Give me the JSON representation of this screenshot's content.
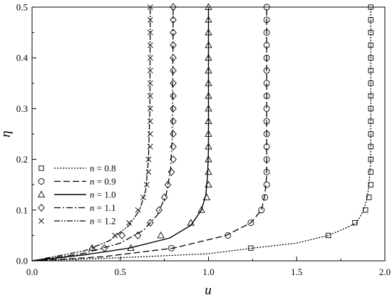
{
  "chart_data": {
    "type": "line",
    "xlabel": "u",
    "ylabel": "η",
    "xlim": [
      0.0,
      2.0
    ],
    "ylim": [
      0.0,
      0.5
    ],
    "x_ticks": [
      "0.0",
      "0.5",
      "1.0",
      "1.5",
      "2.0"
    ],
    "y_ticks": [
      "0.0",
      "0.1",
      "0.2",
      "0.3",
      "0.4",
      "0.5"
    ],
    "grid": false,
    "legend_position": "left-middle",
    "series": [
      {
        "name": "n = 0.8",
        "marker": "square",
        "line_style": "dotted",
        "line": [
          [
            0.0,
            0.0
          ],
          [
            0.5,
            0.006
          ],
          [
            1.0,
            0.014
          ],
          [
            1.25,
            0.025
          ],
          [
            1.5,
            0.035
          ],
          [
            1.68,
            0.05
          ],
          [
            1.78,
            0.065
          ],
          [
            1.84,
            0.075
          ],
          [
            1.88,
            0.1
          ],
          [
            1.9,
            0.125
          ],
          [
            1.91,
            0.15
          ],
          [
            1.92,
            0.2
          ],
          [
            1.92,
            0.5
          ]
        ],
        "markers": [
          [
            1.24,
            0.025
          ],
          [
            1.68,
            0.05
          ],
          [
            1.83,
            0.075
          ],
          [
            1.89,
            0.1
          ],
          [
            1.91,
            0.125
          ],
          [
            1.92,
            0.15
          ],
          [
            1.92,
            0.175
          ],
          [
            1.92,
            0.2
          ],
          [
            1.92,
            0.225
          ],
          [
            1.92,
            0.25
          ],
          [
            1.92,
            0.275
          ],
          [
            1.92,
            0.3
          ],
          [
            1.92,
            0.325
          ],
          [
            1.92,
            0.35
          ],
          [
            1.92,
            0.375
          ],
          [
            1.92,
            0.4
          ],
          [
            1.92,
            0.425
          ],
          [
            1.92,
            0.45
          ],
          [
            1.92,
            0.475
          ],
          [
            1.92,
            0.5
          ]
        ]
      },
      {
        "name": "n = 0.9",
        "marker": "circle",
        "line_style": "dashed",
        "line": [
          [
            0.0,
            0.0
          ],
          [
            0.4,
            0.008
          ],
          [
            0.8,
            0.025
          ],
          [
            1.1,
            0.05
          ],
          [
            1.24,
            0.075
          ],
          [
            1.3,
            0.1
          ],
          [
            1.32,
            0.13
          ],
          [
            1.33,
            0.17
          ],
          [
            1.33,
            0.5
          ]
        ],
        "markers": [
          [
            0.79,
            0.025
          ],
          [
            1.11,
            0.05
          ],
          [
            1.24,
            0.075
          ],
          [
            1.3,
            0.1
          ],
          [
            1.32,
            0.125
          ],
          [
            1.33,
            0.15
          ],
          [
            1.33,
            0.175
          ],
          [
            1.33,
            0.2
          ],
          [
            1.33,
            0.225
          ],
          [
            1.33,
            0.25
          ],
          [
            1.33,
            0.275
          ],
          [
            1.33,
            0.3
          ],
          [
            1.33,
            0.325
          ],
          [
            1.33,
            0.35
          ],
          [
            1.33,
            0.375
          ],
          [
            1.33,
            0.4
          ],
          [
            1.33,
            0.425
          ],
          [
            1.33,
            0.45
          ],
          [
            1.33,
            0.475
          ],
          [
            1.33,
            0.5
          ]
        ]
      },
      {
        "name": "n = 1.0",
        "marker": "triangle",
        "line_style": "solid",
        "line": [
          [
            0.0,
            0.0
          ],
          [
            0.3,
            0.012
          ],
          [
            0.55,
            0.025
          ],
          [
            0.78,
            0.045
          ],
          [
            0.9,
            0.07
          ],
          [
            0.96,
            0.1
          ],
          [
            0.985,
            0.13
          ],
          [
            0.995,
            0.17
          ],
          [
            1.0,
            0.22
          ],
          [
            1.0,
            0.5
          ]
        ],
        "markers": [
          [
            0.34,
            0.025
          ],
          [
            0.56,
            0.025
          ],
          [
            0.73,
            0.05
          ],
          [
            0.9,
            0.075
          ],
          [
            0.96,
            0.1
          ],
          [
            0.99,
            0.125
          ],
          [
            1.0,
            0.15
          ],
          [
            1.0,
            0.175
          ],
          [
            1.0,
            0.2
          ],
          [
            1.0,
            0.225
          ],
          [
            1.0,
            0.25
          ],
          [
            1.0,
            0.275
          ],
          [
            1.0,
            0.3
          ],
          [
            1.0,
            0.325
          ],
          [
            1.0,
            0.35
          ],
          [
            1.0,
            0.375
          ],
          [
            1.0,
            0.4
          ],
          [
            1.0,
            0.425
          ],
          [
            1.0,
            0.45
          ],
          [
            1.0,
            0.475
          ],
          [
            1.0,
            0.5
          ]
        ]
      },
      {
        "name": "n = 1.1",
        "marker": "diamond",
        "line_style": "dash-dot",
        "line": [
          [
            0.0,
            0.0
          ],
          [
            0.3,
            0.015
          ],
          [
            0.5,
            0.035
          ],
          [
            0.63,
            0.06
          ],
          [
            0.71,
            0.09
          ],
          [
            0.76,
            0.13
          ],
          [
            0.785,
            0.18
          ],
          [
            0.795,
            0.25
          ],
          [
            0.8,
            0.5
          ]
        ],
        "markers": [
          [
            0.41,
            0.025
          ],
          [
            0.51,
            0.05
          ],
          [
            0.6,
            0.05
          ],
          [
            0.67,
            0.075
          ],
          [
            0.72,
            0.1
          ],
          [
            0.75,
            0.125
          ],
          [
            0.77,
            0.15
          ],
          [
            0.79,
            0.175
          ],
          [
            0.8,
            0.2
          ],
          [
            0.8,
            0.225
          ],
          [
            0.8,
            0.25
          ],
          [
            0.8,
            0.275
          ],
          [
            0.8,
            0.3
          ],
          [
            0.8,
            0.325
          ],
          [
            0.8,
            0.35
          ],
          [
            0.8,
            0.375
          ],
          [
            0.8,
            0.4
          ],
          [
            0.8,
            0.425
          ],
          [
            0.8,
            0.45
          ],
          [
            0.8,
            0.475
          ],
          [
            0.8,
            0.5
          ]
        ]
      },
      {
        "name": "n = 1.2",
        "marker": "x",
        "line_style": "dash-dot-dot",
        "line": [
          [
            0.0,
            0.0
          ],
          [
            0.3,
            0.02
          ],
          [
            0.44,
            0.04
          ],
          [
            0.55,
            0.07
          ],
          [
            0.61,
            0.1
          ],
          [
            0.645,
            0.14
          ],
          [
            0.66,
            0.2
          ],
          [
            0.668,
            0.3
          ],
          [
            0.67,
            0.5
          ]
        ],
        "markers": [
          [
            0.35,
            0.025
          ],
          [
            0.47,
            0.05
          ],
          [
            0.55,
            0.075
          ],
          [
            0.6,
            0.1
          ],
          [
            0.63,
            0.125
          ],
          [
            0.65,
            0.15
          ],
          [
            0.66,
            0.175
          ],
          [
            0.66,
            0.2
          ],
          [
            0.67,
            0.225
          ],
          [
            0.67,
            0.25
          ],
          [
            0.67,
            0.275
          ],
          [
            0.67,
            0.3
          ],
          [
            0.67,
            0.325
          ],
          [
            0.67,
            0.35
          ],
          [
            0.67,
            0.375
          ],
          [
            0.67,
            0.4
          ],
          [
            0.67,
            0.425
          ],
          [
            0.67,
            0.45
          ],
          [
            0.67,
            0.475
          ],
          [
            0.67,
            0.5
          ]
        ]
      }
    ]
  }
}
